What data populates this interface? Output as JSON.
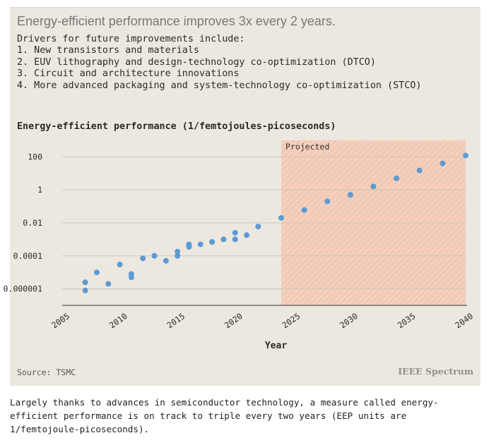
{
  "headline": "Energy-efficient performance improves 3x every 2 years.",
  "drivers": {
    "intro": "Drivers for future improvements include:",
    "items": [
      "1. New transistors and materials",
      "2. EUV lithography and design-technology co-optimization (DTCO)",
      "3. Circuit and architecture innovations",
      "4. More advanced packaging and system-technology co-optimization (STCO)"
    ]
  },
  "source": "Source: TSMC",
  "brand": "IEEE Spectrum",
  "caption": "Largely thanks to advances in semiconductor technology, a measure called energy-efficient performance is on track to triple every two years (EEP units are 1/femtojoule-picoseconds).",
  "chart_data": {
    "type": "scatter",
    "title": "Energy-efficient performance (1/femtojoules-picoseconds)",
    "xlabel": "Year",
    "ylabel": "",
    "xlim": [
      2005,
      2040
    ],
    "ylim": [
      1e-07,
      1000
    ],
    "yscale": "log",
    "x_ticks": [
      2005,
      2010,
      2015,
      2020,
      2025,
      2030,
      2035,
      2040
    ],
    "x_tick_labels": [
      "2005",
      "2010",
      "2015",
      "2020",
      "2025",
      "2030",
      "2035",
      "2040"
    ],
    "y_ticks": [
      1e-06,
      0.0001,
      0.01,
      1,
      100
    ],
    "y_tick_labels": [
      "0.000001",
      "0.0001",
      "0.01",
      "1",
      "100"
    ],
    "grid": "horizontal",
    "point_color": "#5b9bd5",
    "shade_color": "#f2c9b5",
    "projected_region": {
      "label": "Projected",
      "x_start": 2024,
      "x_end": 2040
    },
    "points": [
      {
        "x": 2007,
        "y": 2.5e-06
      },
      {
        "x": 2007,
        "y": 8e-07
      },
      {
        "x": 2008,
        "y": 1e-05
      },
      {
        "x": 2009,
        "y": 2e-06
      },
      {
        "x": 2010,
        "y": 3e-05
      },
      {
        "x": 2011,
        "y": 8e-06
      },
      {
        "x": 2011,
        "y": 5e-06
      },
      {
        "x": 2012,
        "y": 7e-05
      },
      {
        "x": 2013,
        "y": 0.0001
      },
      {
        "x": 2014,
        "y": 5e-05
      },
      {
        "x": 2015,
        "y": 0.00018
      },
      {
        "x": 2015,
        "y": 0.0001
      },
      {
        "x": 2016,
        "y": 0.0005
      },
      {
        "x": 2016,
        "y": 0.0004
      },
      {
        "x": 2016,
        "y": 0.00035
      },
      {
        "x": 2017,
        "y": 0.0005
      },
      {
        "x": 2018,
        "y": 0.0007
      },
      {
        "x": 2019,
        "y": 0.001
      },
      {
        "x": 2020,
        "y": 0.0025
      },
      {
        "x": 2020,
        "y": 0.001
      },
      {
        "x": 2021,
        "y": 0.0018
      },
      {
        "x": 2022,
        "y": 0.006
      },
      {
        "x": 2024,
        "y": 0.02
      },
      {
        "x": 2026,
        "y": 0.06
      },
      {
        "x": 2028,
        "y": 0.2
      },
      {
        "x": 2030,
        "y": 0.5
      },
      {
        "x": 2032,
        "y": 1.6
      },
      {
        "x": 2034,
        "y": 5
      },
      {
        "x": 2036,
        "y": 15
      },
      {
        "x": 2038,
        "y": 40
      },
      {
        "x": 2040,
        "y": 120
      }
    ]
  }
}
